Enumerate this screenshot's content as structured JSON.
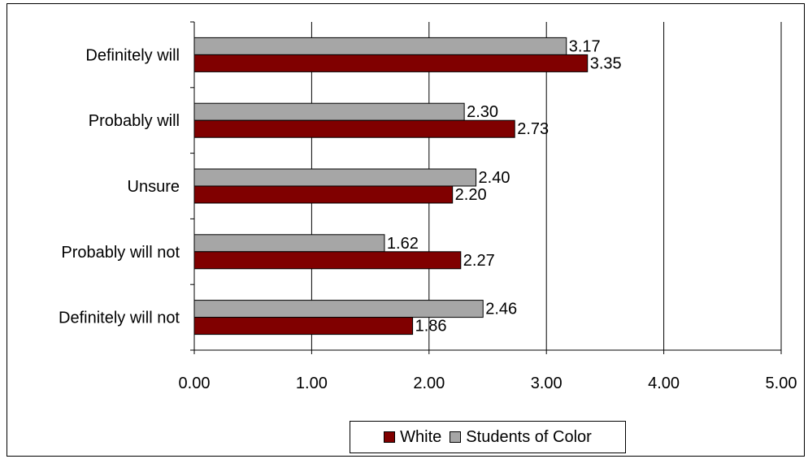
{
  "chart_data": {
    "type": "bar",
    "orientation": "horizontal",
    "categories": [
      "Definitely will",
      "Probably will",
      "Unsure",
      "Probably will not",
      "Definitely will not"
    ],
    "series": [
      {
        "name": "Students of Color",
        "color": "#a6a6a6",
        "values": [
          3.17,
          2.3,
          2.4,
          1.62,
          2.46
        ],
        "labels": [
          "3.17",
          "2.30",
          "2.40",
          "1.62",
          "2.46"
        ]
      },
      {
        "name": "White",
        "color": "#800000",
        "values": [
          3.35,
          2.73,
          2.2,
          2.27,
          1.86
        ],
        "labels": [
          "3.35",
          "2.73",
          "2.20",
          "2.27",
          "1.86"
        ]
      }
    ],
    "xlim": [
      0,
      5
    ],
    "xticks": [
      0,
      1,
      2,
      3,
      4,
      5
    ],
    "xtick_labels": [
      "0.00",
      "1.00",
      "2.00",
      "3.00",
      "4.00",
      "5.00"
    ],
    "grid": "vertical major gridlines",
    "legend": {
      "position": "bottom",
      "entries": [
        "White",
        "Students of Color"
      ]
    }
  }
}
